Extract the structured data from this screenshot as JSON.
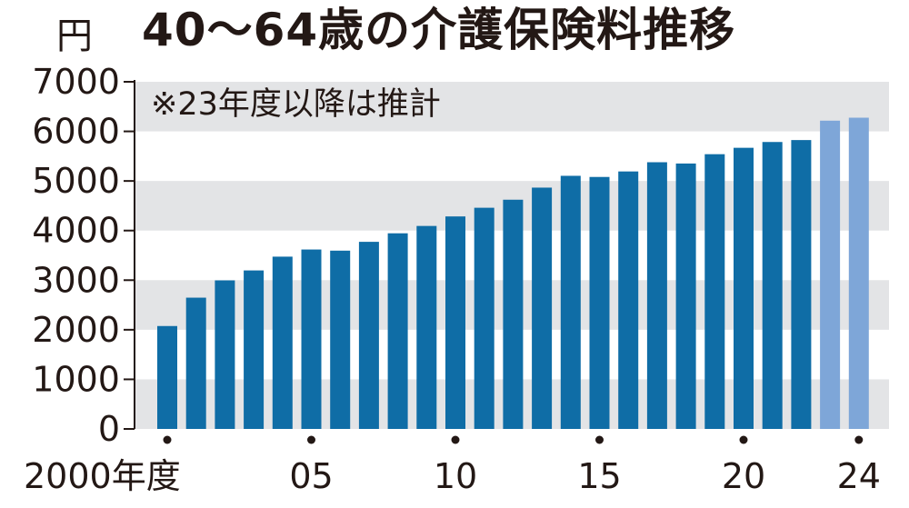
{
  "chart_data": {
    "type": "bar",
    "title": "40～64歳の介護保険料推移",
    "unit_label": "円",
    "note": "※23年度以降は推計",
    "ylim": [
      0,
      7000
    ],
    "yticks": [
      0,
      1000,
      2000,
      3000,
      4000,
      5000,
      6000,
      7000
    ],
    "ytick_labels": [
      "0",
      "1000",
      "2000",
      "3000",
      "4000",
      "5000",
      "6000",
      "7000"
    ],
    "grid": "alternating horizontal bands",
    "categories": [
      "2000",
      "2001",
      "2002",
      "2003",
      "2004",
      "2005",
      "2006",
      "2007",
      "2008",
      "2009",
      "2010",
      "2011",
      "2012",
      "2013",
      "2014",
      "2015",
      "2016",
      "2017",
      "2018",
      "2019",
      "2020",
      "2021",
      "2022",
      "2023",
      "2024"
    ],
    "values": [
      2075,
      2647,
      2996,
      3196,
      3474,
      3618,
      3595,
      3773,
      3945,
      4093,
      4285,
      4460,
      4622,
      4866,
      5104,
      5081,
      5192,
      5378,
      5352,
      5540,
      5669,
      5786,
      5825,
      6216,
      6276
    ],
    "estimated_from_index": 23,
    "xtick_labels": [
      {
        "index": 0,
        "label": "2000年度"
      },
      {
        "index": 5,
        "label": "05"
      },
      {
        "index": 10,
        "label": "10"
      },
      {
        "index": 15,
        "label": "15"
      },
      {
        "index": 20,
        "label": "20"
      },
      {
        "index": 24,
        "label": "24"
      }
    ],
    "colors": {
      "actual": "#0f6da6",
      "estimated": "#7ea6d8",
      "band": "#e3e4e6",
      "axis": "#231815"
    }
  }
}
